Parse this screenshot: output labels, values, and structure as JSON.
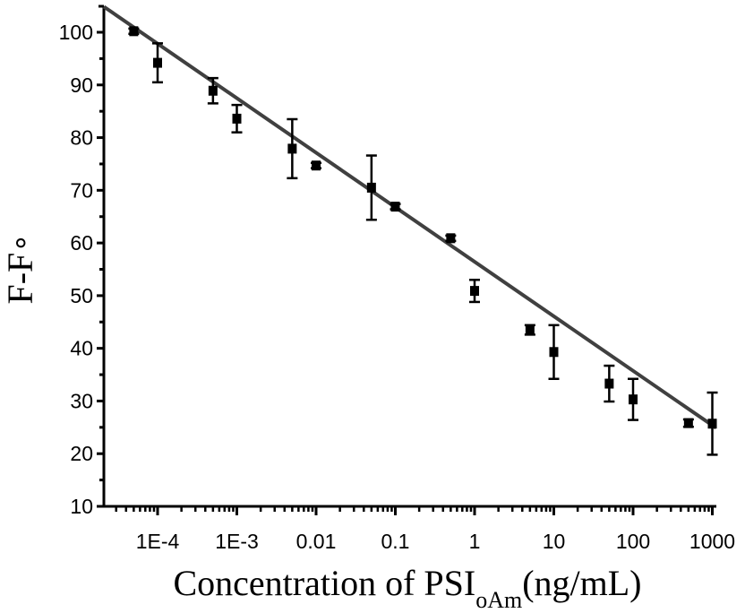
{
  "chart_data": {
    "type": "scatter",
    "title": "",
    "xlabel": "Concentration of PSI",
    "xlabel_subscript": "oAm",
    "xlabel_suffix": "(ng/mL)",
    "ylabel": "F-F",
    "ylabel_subscript": "∘",
    "xscale": "log",
    "xlim": [
      2.1e-05,
      1000
    ],
    "ylim": [
      10,
      105
    ],
    "grid": false,
    "legend": "none",
    "x_ticks": [
      0.0001,
      0.001,
      0.01,
      0.1,
      1,
      10,
      100,
      1000
    ],
    "x_tick_labels": [
      "1E-4",
      "1E-3",
      "0.01",
      "0.1",
      "1",
      "10",
      "100",
      "1000"
    ],
    "y_ticks": [
      10,
      20,
      30,
      40,
      50,
      60,
      70,
      80,
      90,
      100
    ],
    "y_tick_labels": [
      "10",
      "20",
      "30",
      "40",
      "50",
      "60",
      "70",
      "80",
      "90",
      "100"
    ],
    "series": [
      {
        "name": "measured",
        "marker": "square",
        "color": "#000000",
        "points": [
          {
            "x": 5e-05,
            "y": 100.2,
            "err": 0.5
          },
          {
            "x": 0.0001,
            "y": 94.2,
            "err": 3.7
          },
          {
            "x": 0.0005,
            "y": 88.9,
            "err": 2.4
          },
          {
            "x": 0.001,
            "y": 83.6,
            "err": 2.6
          },
          {
            "x": 0.005,
            "y": 77.9,
            "err": 5.6
          },
          {
            "x": 0.01,
            "y": 74.7,
            "err": 0.5
          },
          {
            "x": 0.05,
            "y": 70.5,
            "err": 6.1
          },
          {
            "x": 0.1,
            "y": 66.9,
            "err": 0.5
          },
          {
            "x": 0.5,
            "y": 60.9,
            "err": 0.5
          },
          {
            "x": 1,
            "y": 50.9,
            "err": 2.1
          },
          {
            "x": 5,
            "y": 43.5,
            "err": 0.9
          },
          {
            "x": 10,
            "y": 39.3,
            "err": 5.1
          },
          {
            "x": 50,
            "y": 33.3,
            "err": 3.4
          },
          {
            "x": 100,
            "y": 30.3,
            "err": 3.9
          },
          {
            "x": 500,
            "y": 25.8,
            "err": 0.7
          },
          {
            "x": 1000,
            "y": 25.7,
            "err": 5.9
          }
        ]
      }
    ],
    "fit_line": {
      "name": "linear fit",
      "color": "#404040",
      "slope_per_decade": -10.4,
      "value_at_x1": 56.2,
      "x_range": [
        2.1e-05,
        1000
      ]
    }
  }
}
